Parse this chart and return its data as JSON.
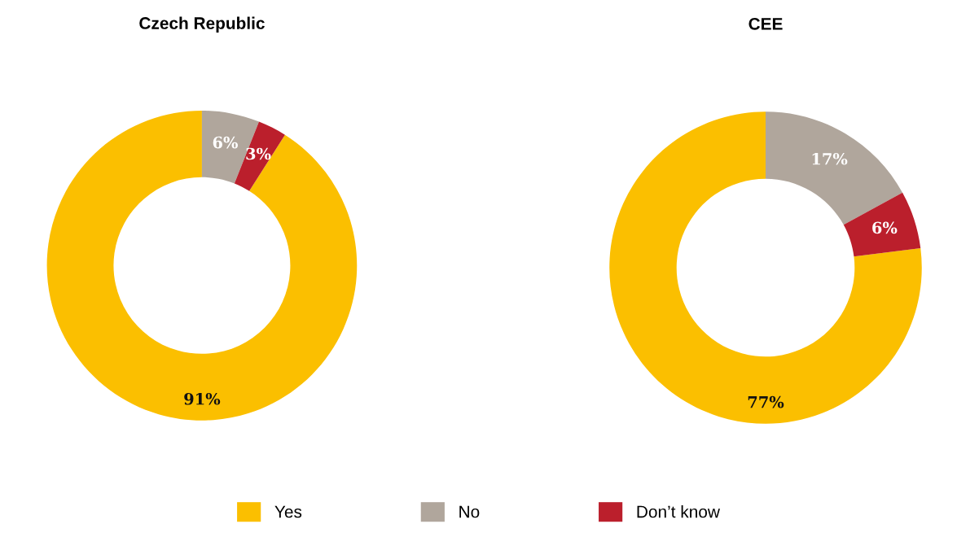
{
  "chart_data": [
    {
      "type": "donut",
      "title": "Czech Republic",
      "categories": [
        "Yes",
        "No",
        "Don’t know"
      ],
      "values": [
        91,
        6,
        3
      ],
      "colors": [
        "#fbbf00",
        "#b0a69c",
        "#bb1f2c"
      ],
      "value_labels": [
        "91%",
        "6%",
        "3%"
      ],
      "legend": "bottom"
    },
    {
      "type": "donut",
      "title": "CEE",
      "values": [
        77,
        17,
        6
      ],
      "colors": [
        "#fbbf00",
        "#b0a69c",
        "#bb1f2c"
      ],
      "value_labels": [
        "77%",
        "17%",
        "6%"
      ]
    }
  ]
}
